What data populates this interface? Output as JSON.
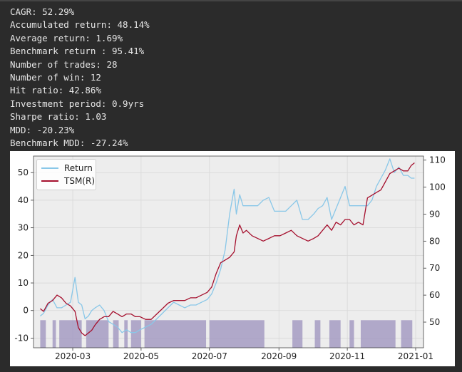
{
  "stats": [
    "CAGR: 52.29%",
    "Accumulated return: 48.14%",
    "Average return: 1.69%",
    "Benchmark return : 95.41%",
    "Number of trades: 28",
    "Number of win: 12",
    "Hit ratio: 42.86%",
    "Investment period: 0.9yrs",
    "Sharpe ratio: 1.03",
    "MDD: -20.23%",
    "Benchmark MDD: -27.24%"
  ],
  "colors": {
    "return": "#89c7e8",
    "benchmark": "#a50f2d",
    "position": "#a59bc2",
    "plot_bg": "#ededed"
  },
  "chart_data": {
    "type": "line",
    "x_ticks": [
      "2020-03",
      "2020-05",
      "2020-07",
      "2020-09",
      "2020-11",
      "2021-01"
    ],
    "x_range": [
      "2020-01-26",
      "2021-01-08"
    ],
    "y_left": {
      "ticks": [
        -10,
        0,
        10,
        20,
        30,
        40,
        50
      ],
      "lim": [
        -13.5,
        56
      ]
    },
    "y_right": {
      "ticks": [
        50,
        60,
        70,
        80,
        90,
        100,
        110
      ],
      "lim": [
        40.5,
        111.5
      ]
    },
    "grid": true,
    "legend_position": "top-left",
    "series": [
      {
        "name": "Return",
        "axis": "left",
        "x": [
          "2020-02-01",
          "2020-02-04",
          "2020-02-08",
          "2020-02-12",
          "2020-02-16",
          "2020-02-20",
          "2020-02-24",
          "2020-02-28",
          "2020-03-03",
          "2020-03-06",
          "2020-03-09",
          "2020-03-12",
          "2020-03-15",
          "2020-03-18",
          "2020-03-21",
          "2020-03-25",
          "2020-03-29",
          "2020-04-02",
          "2020-04-06",
          "2020-04-10",
          "2020-04-14",
          "2020-04-18",
          "2020-04-22",
          "2020-04-26",
          "2020-04-30",
          "2020-05-05",
          "2020-05-10",
          "2020-05-15",
          "2020-05-20",
          "2020-05-25",
          "2020-05-30",
          "2020-06-04",
          "2020-06-09",
          "2020-06-14",
          "2020-06-19",
          "2020-06-24",
          "2020-06-29",
          "2020-07-03",
          "2020-07-07",
          "2020-07-11",
          "2020-07-15",
          "2020-07-19",
          "2020-07-23",
          "2020-07-25",
          "2020-07-28",
          "2020-07-31",
          "2020-08-03",
          "2020-08-08",
          "2020-08-13",
          "2020-08-18",
          "2020-08-23",
          "2020-08-28",
          "2020-09-02",
          "2020-09-07",
          "2020-09-12",
          "2020-09-17",
          "2020-09-22",
          "2020-09-27",
          "2020-10-02",
          "2020-10-06",
          "2020-10-10",
          "2020-10-14",
          "2020-10-18",
          "2020-10-22",
          "2020-10-26",
          "2020-10-30",
          "2020-11-03",
          "2020-11-07",
          "2020-11-11",
          "2020-11-15",
          "2020-11-19",
          "2020-11-23",
          "2020-11-27",
          "2020-12-01",
          "2020-12-05",
          "2020-12-09",
          "2020-12-13",
          "2020-12-17",
          "2020-12-21",
          "2020-12-25",
          "2020-12-28",
          "2020-12-31"
        ],
        "values": [
          -2,
          -1,
          2,
          4,
          1,
          1,
          2,
          3,
          12,
          3,
          2,
          -3,
          -2,
          0,
          1,
          2,
          0,
          -4,
          -5,
          -6,
          -8,
          -7,
          -8,
          -8,
          -7,
          -6,
          -5,
          -3,
          -1,
          1,
          3,
          2,
          1,
          2,
          2,
          3,
          4,
          6,
          10,
          15,
          22,
          35,
          44,
          35,
          42,
          38,
          38,
          38,
          38,
          40,
          41,
          36,
          36,
          36,
          38,
          40,
          33,
          33,
          35,
          37,
          38,
          41,
          33,
          37,
          41,
          45,
          38,
          38,
          38,
          38,
          38,
          40,
          45,
          48,
          51,
          55,
          50,
          52,
          49,
          49,
          48,
          48
        ]
      },
      {
        "name": "TSM(R)",
        "axis": "right",
        "x": [
          "2020-02-01",
          "2020-02-04",
          "2020-02-08",
          "2020-02-12",
          "2020-02-16",
          "2020-02-20",
          "2020-02-24",
          "2020-02-28",
          "2020-03-03",
          "2020-03-06",
          "2020-03-09",
          "2020-03-12",
          "2020-03-15",
          "2020-03-18",
          "2020-03-21",
          "2020-03-25",
          "2020-03-29",
          "2020-04-02",
          "2020-04-06",
          "2020-04-10",
          "2020-04-14",
          "2020-04-18",
          "2020-04-22",
          "2020-04-26",
          "2020-04-30",
          "2020-05-05",
          "2020-05-10",
          "2020-05-15",
          "2020-05-20",
          "2020-05-25",
          "2020-05-30",
          "2020-06-04",
          "2020-06-09",
          "2020-06-14",
          "2020-06-19",
          "2020-06-24",
          "2020-06-29",
          "2020-07-03",
          "2020-07-07",
          "2020-07-11",
          "2020-07-15",
          "2020-07-19",
          "2020-07-23",
          "2020-07-25",
          "2020-07-28",
          "2020-07-31",
          "2020-08-03",
          "2020-08-08",
          "2020-08-13",
          "2020-08-18",
          "2020-08-23",
          "2020-08-28",
          "2020-09-02",
          "2020-09-07",
          "2020-09-12",
          "2020-09-17",
          "2020-09-22",
          "2020-09-27",
          "2020-10-02",
          "2020-10-06",
          "2020-10-10",
          "2020-10-14",
          "2020-10-18",
          "2020-10-22",
          "2020-10-26",
          "2020-10-30",
          "2020-11-03",
          "2020-11-07",
          "2020-11-11",
          "2020-11-15",
          "2020-11-19",
          "2020-11-23",
          "2020-11-27",
          "2020-12-01",
          "2020-12-05",
          "2020-12-09",
          "2020-12-13",
          "2020-12-17",
          "2020-12-21",
          "2020-12-25",
          "2020-12-28",
          "2020-12-31"
        ],
        "values": [
          55,
          54,
          57,
          58,
          60,
          59,
          57,
          56,
          54,
          48,
          46,
          45,
          46,
          47,
          49,
          51,
          52,
          52,
          54,
          53,
          52,
          53,
          53,
          52,
          52,
          51,
          51,
          53,
          55,
          57,
          58,
          58,
          58,
          59,
          59,
          60,
          61,
          63,
          68,
          72,
          73,
          74,
          76,
          82,
          86,
          83,
          84,
          82,
          81,
          80,
          81,
          82,
          82,
          83,
          84,
          82,
          81,
          80,
          81,
          82,
          84,
          86,
          84,
          87,
          86,
          88,
          88,
          86,
          87,
          86,
          96,
          97,
          98,
          99,
          102,
          105,
          106,
          107,
          106,
          106,
          108,
          109
        ]
      }
    ],
    "position_periods": [
      [
        "2020-02-01",
        "2020-02-06"
      ],
      [
        "2020-02-12",
        "2020-02-15"
      ],
      [
        "2020-02-18",
        "2020-03-09"
      ],
      [
        "2020-03-13",
        "2020-04-02"
      ],
      [
        "2020-04-06",
        "2020-04-11"
      ],
      [
        "2020-04-16",
        "2020-04-19"
      ],
      [
        "2020-04-22",
        "2020-05-01"
      ],
      [
        "2020-05-04",
        "2020-06-28"
      ],
      [
        "2020-07-01",
        "2020-08-19"
      ],
      [
        "2020-09-13",
        "2020-09-22"
      ],
      [
        "2020-10-03",
        "2020-10-08"
      ],
      [
        "2020-10-16",
        "2020-10-26"
      ],
      [
        "2020-11-03",
        "2020-11-07"
      ],
      [
        "2020-11-13",
        "2020-12-14"
      ],
      [
        "2020-12-19",
        "2020-12-29"
      ]
    ]
  }
}
